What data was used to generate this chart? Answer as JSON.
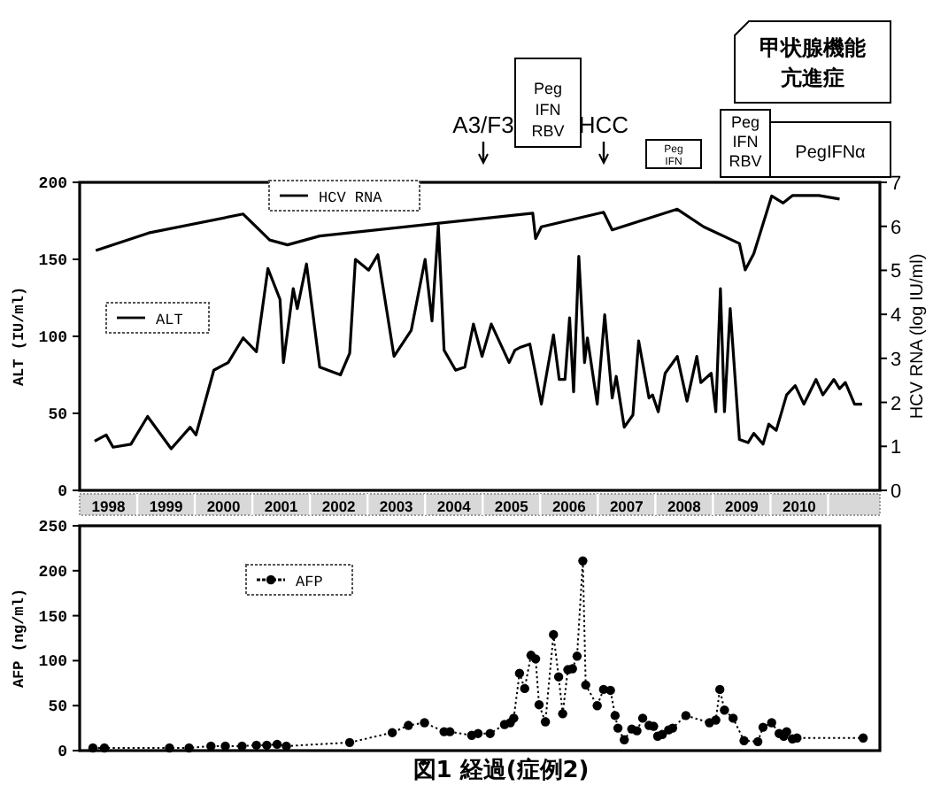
{
  "chart_data": [
    {
      "type": "line",
      "xlabel": null,
      "ylabel": "ALT (IU/ml)",
      "y2label": "HCV RNA (log IU/ml)",
      "xlim": [
        1998,
        2011.9
      ],
      "xticks": [
        {
          "value": 1998.5,
          "label": "1998"
        },
        {
          "value": 1999.5,
          "label": "1999"
        },
        {
          "value": 2000.5,
          "label": "2000"
        },
        {
          "value": 2001.5,
          "label": "2001"
        },
        {
          "value": 2002.5,
          "label": "2002"
        },
        {
          "value": 2003.5,
          "label": "2003"
        },
        {
          "value": 2004.5,
          "label": "2004"
        },
        {
          "value": 2005.5,
          "label": "2005"
        },
        {
          "value": 2006.5,
          "label": "2006"
        },
        {
          "value": 2007.5,
          "label": "2007"
        },
        {
          "value": 2008.5,
          "label": "2008"
        },
        {
          "value": 2009.5,
          "label": "2009"
        },
        {
          "value": 2010.5,
          "label": "2010"
        }
      ],
      "ylim": [
        0,
        200
      ],
      "yticks": [
        0,
        50,
        100,
        150,
        200
      ],
      "y2lim": [
        0,
        7
      ],
      "y2ticks": [
        0,
        1,
        2,
        3,
        4,
        5,
        6,
        7
      ],
      "legend": "top left",
      "marker": "none",
      "line_style": "solid",
      "series": [
        {
          "name": "ALT",
          "color": "#000000",
          "x": [
            1998.26,
            1998.46,
            1998.58,
            1998.89,
            1999.18,
            1999.59,
            1999.92,
            2000.02,
            2000.33,
            2000.58,
            2000.84,
            2001.07,
            2001.27,
            2001.48,
            2001.54,
            2001.71,
            2001.78,
            2001.94,
            2002.17,
            2002.53,
            2002.69,
            2002.79,
            2003.02,
            2003.18,
            2003.46,
            2003.76,
            2004.0,
            2004.12,
            2004.23,
            2004.33,
            2004.53,
            2004.69,
            2004.84,
            2004.99,
            2005.15,
            2005.46,
            2005.56,
            2005.66,
            2005.82,
            2006.02,
            2006.23,
            2006.33,
            2006.43,
            2006.51,
            2006.58,
            2006.67,
            2006.77,
            2006.82,
            2006.99,
            2007.12,
            2007.25,
            2007.32,
            2007.46,
            2007.61,
            2007.71,
            2007.89,
            2007.95,
            2008.05,
            2008.17,
            2008.38,
            2008.55,
            2008.72,
            2008.79,
            2008.97,
            2009.05,
            2009.13,
            2009.2,
            2009.3,
            2009.46,
            2009.61,
            2009.71,
            2009.87,
            2009.97,
            2010.1,
            2010.28,
            2010.43,
            2010.58,
            2010.79,
            2010.91,
            2011.1,
            2011.2,
            2011.3,
            2011.46,
            2011.59
          ],
          "values": [
            32,
            36,
            28,
            30,
            48,
            27,
            41,
            36,
            78,
            83,
            99,
            90,
            144,
            124,
            83,
            131,
            118,
            147,
            80,
            75,
            89,
            150,
            143,
            153,
            87,
            104,
            150,
            110,
            172,
            91,
            78,
            80,
            108,
            87,
            108,
            83,
            91,
            93,
            95,
            56,
            101,
            72,
            72,
            112,
            64,
            152,
            83,
            99,
            56,
            114,
            60,
            74,
            41,
            49,
            97,
            60,
            62,
            51,
            76,
            87,
            58,
            87,
            70,
            76,
            51,
            131,
            51,
            118,
            33,
            31,
            37,
            30,
            43,
            39,
            62,
            68,
            56,
            72,
            62,
            72,
            66,
            70,
            56,
            56
          ]
        },
        {
          "name": "HCV RNA",
          "color": "#000000",
          "axis": "y2",
          "x": [
            1998.28,
            1999.2,
            2000.84,
            2001.3,
            2001.61,
            2002.17,
            2005.87,
            2005.92,
            2006.02,
            2007.1,
            2007.25,
            2008.38,
            2008.84,
            2009.46,
            2009.56,
            2009.71,
            2010.02,
            2010.22,
            2010.38,
            2010.84,
            2011.2
          ],
          "values": [
            5.45,
            5.85,
            6.28,
            5.69,
            5.58,
            5.78,
            6.3,
            5.72,
            5.99,
            6.32,
            5.92,
            6.39,
            5.99,
            5.61,
            5.01,
            5.38,
            6.69,
            6.53,
            6.7,
            6.7,
            6.62
          ]
        }
      ],
      "annotations": [
        "A3/F3",
        "HCC",
        "Peg\nIFN\nRBV",
        "Peg\nIFN",
        "Peg\nIFN\nRBV",
        "PegIFNα",
        "甲状腺機能亢進症"
      ]
    },
    {
      "type": "line",
      "ylabel": "AFP (ng/ml)",
      "xlim": [
        1998,
        2011.9
      ],
      "ylim": [
        0,
        250
      ],
      "yticks": [
        0,
        50,
        100,
        150,
        200,
        250
      ],
      "tick_labels": "y",
      "legend": "top left",
      "marker": "circle",
      "line_style": "dotted",
      "series": [
        {
          "name": "AFP",
          "color": "#000000",
          "x": [
            1998.23,
            1998.43,
            1999.56,
            1999.9,
            2000.28,
            2000.53,
            2000.82,
            2001.07,
            2001.25,
            2001.43,
            2001.59,
            2002.69,
            2003.43,
            2003.71,
            2003.99,
            2004.33,
            2004.43,
            2004.81,
            2004.92,
            2005.13,
            2005.38,
            2005.48,
            2005.54,
            2005.64,
            2005.73,
            2005.84,
            2005.92,
            2005.98,
            2006.09,
            2006.23,
            2006.32,
            2006.39,
            2006.48,
            2006.56,
            2006.64,
            2006.74,
            2006.79,
            2006.99,
            2007.1,
            2007.22,
            2007.3,
            2007.35,
            2007.46,
            2007.59,
            2007.68,
            2007.78,
            2007.89,
            2007.97,
            2008.04,
            2008.12,
            2008.23,
            2008.3,
            2008.53,
            2008.94,
            2009.05,
            2009.12,
            2009.2,
            2009.35,
            2009.54,
            2009.78,
            2009.87,
            2010.02,
            2010.15,
            2010.23,
            2010.28,
            2010.38,
            2010.46,
            2011.61
          ],
          "values": [
            3,
            3,
            3,
            3,
            5,
            5,
            5,
            6,
            6,
            7,
            5,
            9,
            20,
            28,
            31,
            21,
            21,
            17,
            19,
            19,
            29,
            31,
            36,
            86,
            69,
            106,
            102,
            51,
            32,
            129,
            82,
            41,
            90,
            91,
            105,
            211,
            73,
            50,
            68,
            67,
            39,
            25,
            12,
            24,
            22,
            36,
            28,
            27,
            16,
            18,
            23,
            25,
            39,
            31,
            34,
            68,
            45,
            36,
            11,
            10,
            26,
            31,
            19,
            16,
            21,
            13,
            14,
            14
          ]
        }
      ],
      "annotations": [
        "図1 経過(症例2)"
      ]
    }
  ]
}
